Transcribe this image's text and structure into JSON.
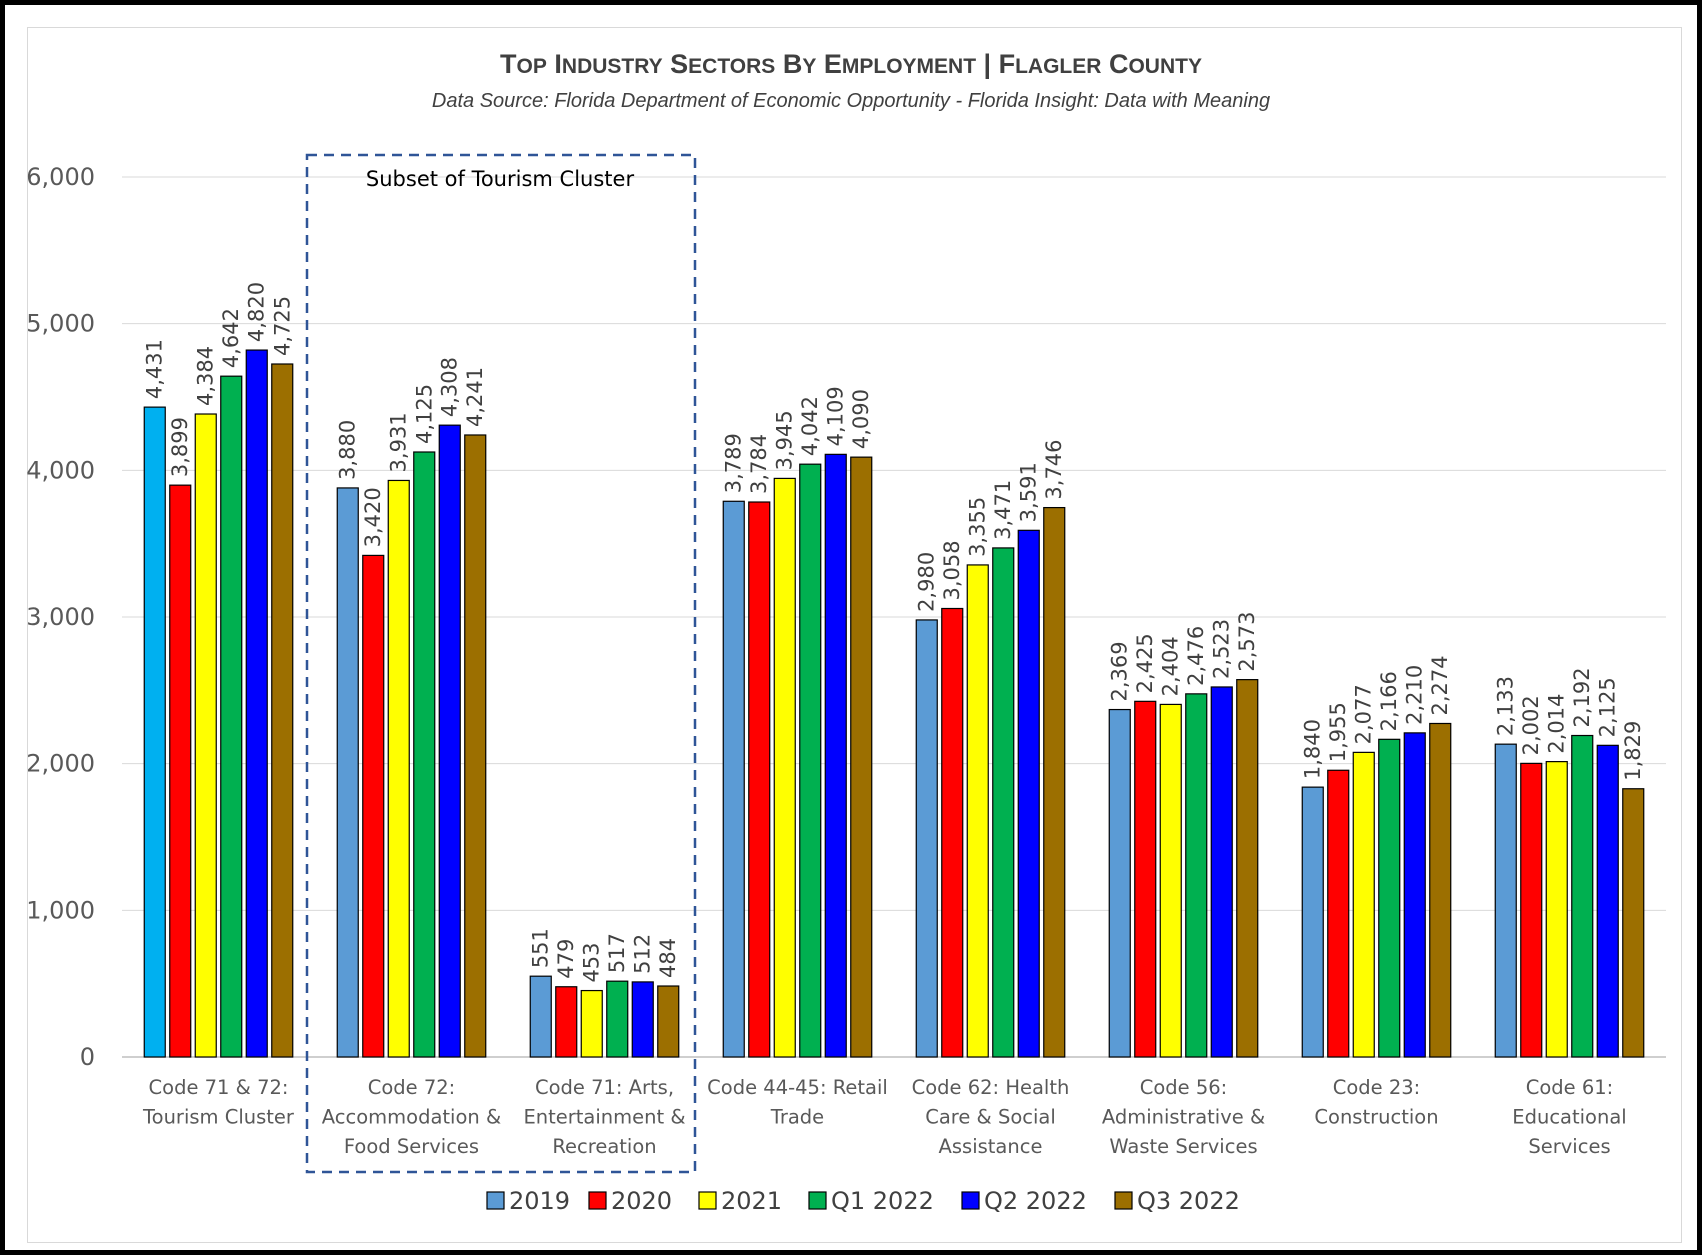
{
  "chart_data": {
    "type": "bar",
    "title_parts": [
      "Top Industry Sectors by Employment",
      "|",
      "Flagler County"
    ],
    "subtitle": "Data Source:  Florida Department of Economic Opportunity - Florida Insight:  Data with Meaning",
    "annotation": "Subset of Tourism Cluster",
    "ylim": [
      0,
      6000
    ],
    "yticks": [
      "0",
      "1,000",
      "2,000",
      "3,000",
      "4,000",
      "5,000",
      "6,000"
    ],
    "grid": true,
    "legend_position": "bottom",
    "categories": [
      [
        "Code 71 & 72:",
        "Tourism Cluster"
      ],
      [
        "Code 72:",
        "Accommodation &",
        "Food Services"
      ],
      [
        "Code 71:  Arts,",
        "Entertainment &",
        "Recreation"
      ],
      [
        "Code 44-45:  Retail",
        "Trade"
      ],
      [
        "Code 62:  Health",
        "Care & Social",
        "Assistance"
      ],
      [
        "Code 56:",
        "Administrative &",
        "Waste Services"
      ],
      [
        "Code 23:",
        "Construction"
      ],
      [
        "Code 61:",
        "Educational",
        "Services"
      ]
    ],
    "series": [
      {
        "name": "2019",
        "color": "#5b9bd5",
        "first_color": "#00b0f0",
        "values": [
          4431,
          3880,
          551,
          3789,
          2980,
          2369,
          1840,
          2133
        ],
        "labels": [
          "4,431",
          "3,880",
          "551",
          "3,789",
          "2,980",
          "2,369",
          "1,840",
          "2,133"
        ]
      },
      {
        "name": "2020",
        "color": "#ff0000",
        "values": [
          3899,
          3420,
          479,
          3784,
          3058,
          2425,
          1955,
          2002
        ],
        "labels": [
          "3,899",
          "3,420",
          "479",
          "3,784",
          "3,058",
          "2,425",
          "1,955",
          "2,002"
        ]
      },
      {
        "name": "2021",
        "color": "#ffff00",
        "values": [
          4384,
          3931,
          453,
          3945,
          3355,
          2404,
          2077,
          2014
        ],
        "labels": [
          "4,384",
          "3,931",
          "453",
          "3,945",
          "3,355",
          "2,404",
          "2,077",
          "2,014"
        ]
      },
      {
        "name": "Q1 2022",
        "color": "#00b050",
        "values": [
          4642,
          4125,
          517,
          4042,
          3471,
          2476,
          2166,
          2192
        ],
        "labels": [
          "4,642",
          "4,125",
          "517",
          "4,042",
          "3,471",
          "2,476",
          "2,166",
          "2,192"
        ]
      },
      {
        "name": "Q2 2022",
        "color": "#0000ff",
        "values": [
          4820,
          4308,
          512,
          4109,
          3591,
          2523,
          2210,
          2125
        ],
        "labels": [
          "4,820",
          "4,308",
          "512",
          "4,109",
          "3,591",
          "2,523",
          "2,210",
          "2,125"
        ]
      },
      {
        "name": "Q3 2022",
        "color": "#9c6f00",
        "values": [
          4725,
          4241,
          484,
          4090,
          3746,
          2573,
          2274,
          1829
        ],
        "labels": [
          "4,725",
          "4,241",
          "484",
          "4,090",
          "3,746",
          "2,573",
          "2,274",
          "1,829"
        ]
      }
    ]
  }
}
